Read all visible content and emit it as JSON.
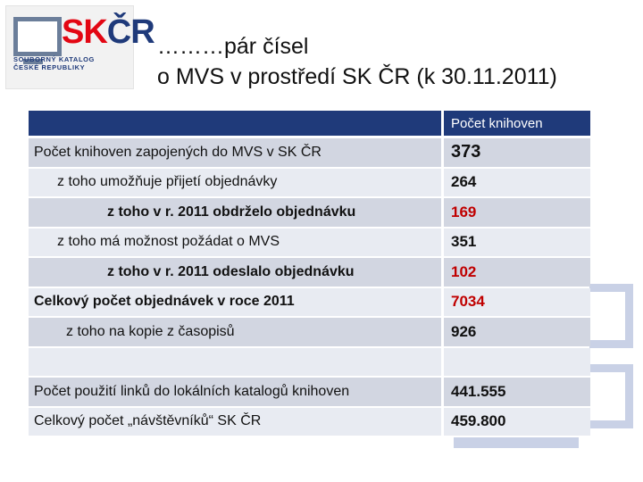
{
  "logo": {
    "mark_part1": "SK",
    "mark_part2": "ČR",
    "caption_line1": "SOUBORNÝ KATALOG",
    "caption_line2": "ČESKÉ REPUBLIKY",
    "colors": {
      "red": "#e30613",
      "blue": "#1f3a7a",
      "gray": "#6b7e9a"
    }
  },
  "title": {
    "line1": "………pár čísel",
    "line2": "o MVS v prostředí SK ČR (k 30.11.2011)"
  },
  "table": {
    "header": {
      "label": "",
      "value_header": "Počet knihoven"
    },
    "rows": [
      {
        "label": "Počet knihoven zapojených do MVS v SK ČR",
        "value": "373"
      },
      {
        "label": "z toho umožňuje přijetí objednávky",
        "value": "264"
      },
      {
        "label": "z toho v r. 2011 obdrželo objednávku",
        "value": "169"
      },
      {
        "label": "z toho má možnost požádat o MVS",
        "value": "351"
      },
      {
        "label": "z toho v r. 2011 odeslalo objednávku",
        "value": "102"
      },
      {
        "label": "Celkový počet objednávek v roce 2011",
        "value": "7034"
      },
      {
        "label": "z toho na kopie z časopisů",
        "value": "926"
      },
      {
        "label": "",
        "value": ""
      },
      {
        "label": "Počet použití linků do lokálních katalogů knihoven",
        "value": "441.555"
      },
      {
        "label": "Celkový počet „návštěvníků“ SK ČR",
        "value": "459.800"
      }
    ],
    "colors": {
      "header_bg": "#1f3a7a",
      "row_dark": "#d2d6e1",
      "row_light": "#e8ebf2",
      "highlight_value": "#c00000"
    }
  }
}
